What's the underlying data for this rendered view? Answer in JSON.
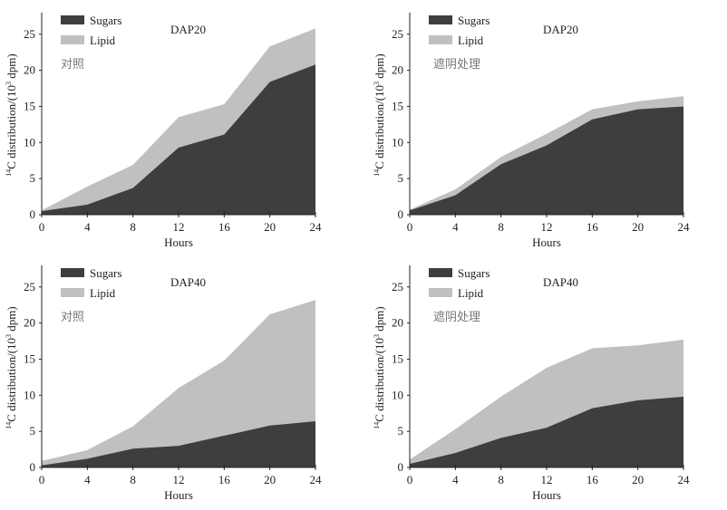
{
  "colors": {
    "sugars": "#3f3d40",
    "lipid": "#c0c0c0",
    "axis": "#222222"
  },
  "chart_data": [
    {
      "type": "area",
      "stacked": true,
      "title": "DAP20",
      "annotation": "对照",
      "xlabel": "Hours",
      "ylabel": "14C distribution/(10³ dpm)",
      "ylabel_sup": "14",
      "ylabel_main": "C distribution/(10",
      "ylabel_exp": "3",
      "ylabel_end": " dpm)",
      "x": [
        0,
        4,
        8,
        12,
        16,
        20,
        24
      ],
      "xticks": [
        "0",
        "4",
        "8",
        "12",
        "16",
        "20",
        "24"
      ],
      "yticks": [
        "0",
        "5",
        "10",
        "15",
        "20",
        "25"
      ],
      "ylim": [
        0,
        28
      ],
      "legend": [
        "Sugars",
        "Lipid"
      ],
      "legend_position": "top-left",
      "series": [
        {
          "name": "Sugars",
          "values": [
            0.5,
            1.4,
            3.7,
            9.3,
            11.1,
            18.4,
            20.8
          ]
        },
        {
          "name": "Lipid",
          "values": [
            0.1,
            2.5,
            3.2,
            4.2,
            4.2,
            4.9,
            5.0
          ]
        }
      ]
    },
    {
      "type": "area",
      "stacked": true,
      "title": "DAP20",
      "annotation": "遮阴处理",
      "xlabel": "Hours",
      "ylabel": "14C distribution/(10³ dpm)",
      "ylabel_sup": "14",
      "ylabel_main": "C distribution/(10",
      "ylabel_exp": "3",
      "ylabel_end": " dpm)",
      "x": [
        0,
        4,
        8,
        12,
        16,
        20,
        24
      ],
      "xticks": [
        "0",
        "4",
        "8",
        "12",
        "16",
        "20",
        "24"
      ],
      "yticks": [
        "0",
        "5",
        "10",
        "15",
        "20",
        "25"
      ],
      "ylim": [
        0,
        28
      ],
      "legend": [
        "Sugars",
        "Lipid"
      ],
      "legend_position": "top-left",
      "series": [
        {
          "name": "Sugars",
          "values": [
            0.6,
            2.7,
            7.0,
            9.6,
            13.2,
            14.6,
            15.0
          ]
        },
        {
          "name": "Lipid",
          "values": [
            0.1,
            0.8,
            1.0,
            1.6,
            1.4,
            1.1,
            1.4
          ]
        }
      ]
    },
    {
      "type": "area",
      "stacked": true,
      "title": "DAP40",
      "annotation": "对照",
      "xlabel": "Hours",
      "ylabel": "14C distribution/(10³ dpm)",
      "ylabel_sup": "14",
      "ylabel_main": "C distribution/(10",
      "ylabel_exp": "3",
      "ylabel_end": " dpm)",
      "x": [
        0,
        4,
        8,
        12,
        16,
        20,
        24
      ],
      "xticks": [
        "0",
        "4",
        "8",
        "12",
        "16",
        "20",
        "24"
      ],
      "yticks": [
        "0",
        "5",
        "10",
        "15",
        "20",
        "25"
      ],
      "ylim": [
        0,
        28
      ],
      "legend": [
        "Sugars",
        "Lipid"
      ],
      "legend_position": "top-left",
      "series": [
        {
          "name": "Sugars",
          "values": [
            0.3,
            1.2,
            2.6,
            3.0,
            4.4,
            5.8,
            6.4
          ]
        },
        {
          "name": "Lipid",
          "values": [
            0.6,
            1.2,
            3.1,
            8.0,
            10.4,
            15.4,
            16.8
          ]
        }
      ]
    },
    {
      "type": "area",
      "stacked": true,
      "title": "DAP40",
      "annotation": "遮阴处理",
      "xlabel": "Hours",
      "ylabel": "14C distribution/(10³ dpm)",
      "ylabel_sup": "14",
      "ylabel_main": "C distribution/(10",
      "ylabel_exp": "3",
      "ylabel_end": " dpm)",
      "x": [
        0,
        4,
        8,
        12,
        16,
        20,
        24
      ],
      "xticks": [
        "0",
        "4",
        "8",
        "12",
        "16",
        "20",
        "24"
      ],
      "yticks": [
        "0",
        "5",
        "10",
        "15",
        "20",
        "25"
      ],
      "ylim": [
        0,
        28
      ],
      "legend": [
        "Sugars",
        "Lipid"
      ],
      "legend_position": "top-left",
      "series": [
        {
          "name": "Sugars",
          "values": [
            0.5,
            2.0,
            4.1,
            5.5,
            8.2,
            9.3,
            9.8
          ]
        },
        {
          "name": "Lipid",
          "values": [
            0.6,
            3.3,
            5.7,
            8.3,
            8.3,
            7.6,
            7.9
          ]
        }
      ]
    }
  ]
}
